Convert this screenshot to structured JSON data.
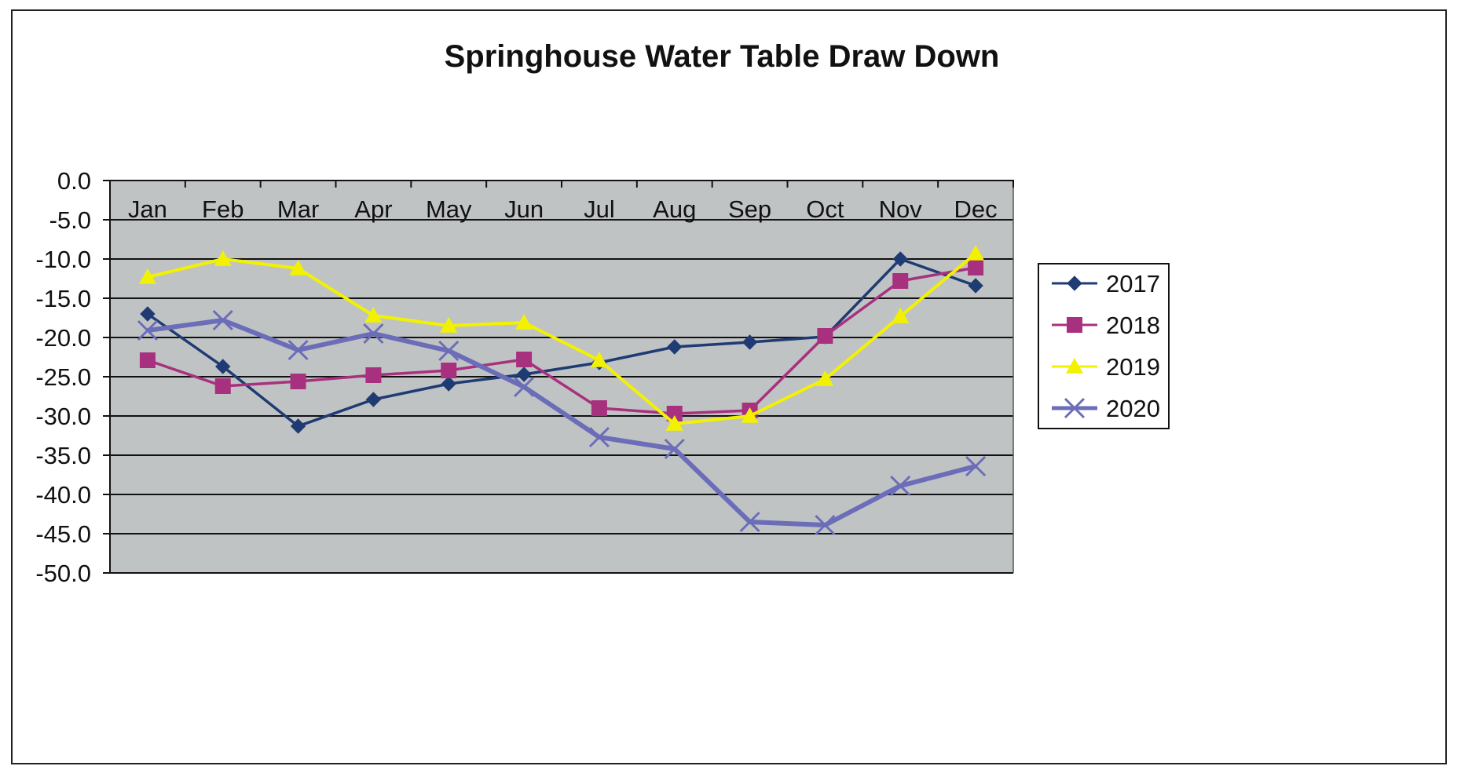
{
  "chart_data": {
    "type": "line",
    "title": "Springhouse  Water  Table Draw Down",
    "xlabel": "",
    "ylabel": "",
    "categories": [
      "Jan",
      "Feb",
      "Mar",
      "Apr",
      "May",
      "Jun",
      "Jul",
      "Aug",
      "Sep",
      "Oct",
      "Nov",
      "Dec"
    ],
    "ylim": [
      -50,
      0
    ],
    "yticks": [
      0,
      -5,
      -10,
      -15,
      -20,
      -25,
      -30,
      -35,
      -40,
      -45,
      -50
    ],
    "ytick_labels": [
      "0.0",
      "-5.0",
      "-10.0",
      "-15.0",
      "-20.0",
      "-25.0",
      "-30.0",
      "-35.0",
      "-40.0",
      "-45.0",
      "-50.0"
    ],
    "x_axis_position": "top",
    "grid": true,
    "plot_background": "#c0c3c4",
    "legend_position": "right",
    "series": [
      {
        "name": "2017",
        "color": "#1f3b73",
        "marker": "diamond",
        "values": [
          -17.0,
          -23.7,
          -31.3,
          -27.9,
          -25.9,
          -24.7,
          -23.2,
          -21.2,
          -20.6,
          -19.9,
          -10.0,
          -13.4
        ]
      },
      {
        "name": "2018",
        "color": "#a8317f",
        "marker": "square",
        "values": [
          -22.9,
          -26.2,
          -25.6,
          -24.8,
          -24.2,
          -22.8,
          -29.0,
          -29.7,
          -29.3,
          -19.8,
          -12.8,
          -11.1
        ]
      },
      {
        "name": "2019",
        "color": "#f2f200",
        "marker": "triangle",
        "values": [
          -12.3,
          -10.0,
          -11.2,
          -17.2,
          -18.5,
          -18.1,
          -22.9,
          -31.0,
          -30.0,
          -25.3,
          -17.3,
          -9.3
        ]
      },
      {
        "name": "2020",
        "color": "#6b6db8",
        "marker": "x",
        "values": [
          -19.1,
          -17.8,
          -21.6,
          -19.5,
          -21.7,
          -26.3,
          -32.7,
          -34.2,
          -43.5,
          -43.9,
          -38.9,
          -36.4
        ]
      }
    ]
  }
}
